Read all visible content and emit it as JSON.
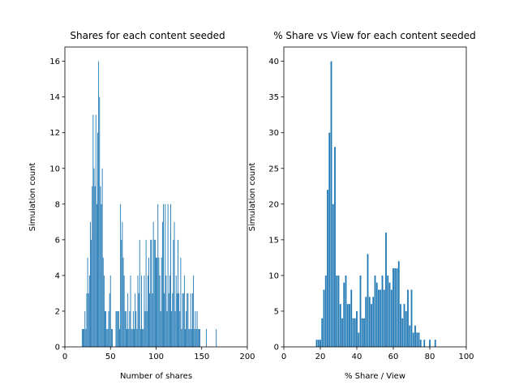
{
  "chart_data": [
    {
      "type": "bar",
      "title": "Shares for each content seeded",
      "xlabel": "Number of shares",
      "ylabel": "Simulation count",
      "xlim": [
        0,
        200
      ],
      "ylim": [
        0,
        16.8
      ],
      "xticks": [
        0,
        50,
        100,
        150,
        200
      ],
      "yticks": [
        0,
        2,
        4,
        6,
        8,
        10,
        12,
        14,
        16
      ],
      "grid": false,
      "color": "#1f77b4",
      "bar_width": 0.8,
      "x": [
        19,
        20,
        21,
        22,
        23,
        24,
        25,
        26,
        27,
        28,
        29,
        30,
        31,
        32,
        33,
        34,
        35,
        36,
        37,
        38,
        39,
        40,
        41,
        42,
        43,
        44,
        45,
        46,
        47,
        48,
        49,
        50,
        51,
        52,
        56,
        57,
        58,
        59,
        60,
        61,
        62,
        63,
        64,
        65,
        66,
        67,
        68,
        69,
        70,
        71,
        72,
        73,
        74,
        75,
        76,
        77,
        78,
        79,
        80,
        81,
        82,
        83,
        84,
        85,
        86,
        87,
        88,
        89,
        90,
        91,
        92,
        93,
        94,
        95,
        96,
        97,
        98,
        99,
        100,
        101,
        102,
        103,
        104,
        105,
        106,
        107,
        108,
        109,
        110,
        111,
        112,
        113,
        114,
        115,
        116,
        117,
        118,
        119,
        120,
        121,
        122,
        123,
        124,
        125,
        126,
        127,
        128,
        129,
        130,
        131,
        132,
        133,
        134,
        135,
        136,
        137,
        138,
        139,
        140,
        141,
        142,
        143,
        144,
        145,
        146,
        147,
        148,
        155,
        166
      ],
      "y": [
        1,
        1,
        1,
        2,
        1,
        3,
        5,
        3,
        4,
        7,
        6,
        9,
        13,
        10,
        9,
        13,
        8,
        12,
        16,
        14,
        9,
        8,
        10,
        5,
        4,
        2,
        2,
        1,
        1,
        2,
        3,
        4,
        1,
        1,
        2,
        2,
        2,
        2,
        1,
        8,
        6,
        7,
        5,
        4,
        2,
        2,
        1,
        3,
        1,
        2,
        4,
        1,
        1,
        2,
        1,
        3,
        2,
        1,
        4,
        3,
        6,
        1,
        4,
        1,
        1,
        4,
        2,
        6,
        2,
        4,
        5,
        3,
        6,
        6,
        3,
        7,
        6,
        6,
        5,
        5,
        8,
        5,
        4,
        2,
        5,
        7,
        8,
        3,
        8,
        4,
        2,
        8,
        3,
        4,
        8,
        2,
        3,
        6,
        7,
        2,
        4,
        3,
        6,
        3,
        2,
        5,
        1,
        3,
        3,
        4,
        1,
        2,
        3,
        3,
        1,
        1,
        3,
        1,
        3,
        4,
        1,
        2,
        1,
        2,
        1,
        1,
        1,
        1,
        1
      ]
    },
    {
      "type": "bar",
      "title": "% Share vs View for each content seeded",
      "xlabel": "% Share / View",
      "ylabel": "Simulation count",
      "xlim": [
        0,
        100
      ],
      "ylim": [
        0,
        42
      ],
      "xticks": [
        0,
        20,
        40,
        60,
        80,
        100
      ],
      "yticks": [
        0,
        5,
        10,
        15,
        20,
        25,
        30,
        35,
        40
      ],
      "grid": false,
      "color": "#1f77b4",
      "bar_width": 0.8,
      "x": [
        18,
        19,
        20,
        21,
        22,
        23,
        24,
        25,
        26,
        27,
        28,
        29,
        30,
        31,
        32,
        33,
        34,
        35,
        36,
        37,
        38,
        39,
        40,
        41,
        42,
        43,
        44,
        45,
        46,
        47,
        48,
        49,
        50,
        51,
        52,
        53,
        54,
        55,
        56,
        57,
        58,
        59,
        60,
        61,
        62,
        63,
        64,
        65,
        66,
        67,
        68,
        69,
        70,
        71,
        72,
        73,
        74,
        75,
        77,
        80,
        83
      ],
      "y": [
        1,
        1,
        1,
        4,
        8,
        10,
        22,
        30,
        40,
        20,
        28,
        10,
        10,
        6,
        4,
        9,
        10,
        6,
        6,
        8,
        4,
        4,
        5,
        2,
        10,
        4,
        4,
        7,
        13,
        7,
        6,
        7,
        10,
        9,
        8,
        8,
        10,
        8,
        16,
        10,
        9,
        8,
        11,
        11,
        11,
        12,
        6,
        4,
        6,
        5,
        8,
        3,
        8,
        2,
        3,
        2,
        2,
        1,
        1,
        1,
        1
      ]
    }
  ]
}
